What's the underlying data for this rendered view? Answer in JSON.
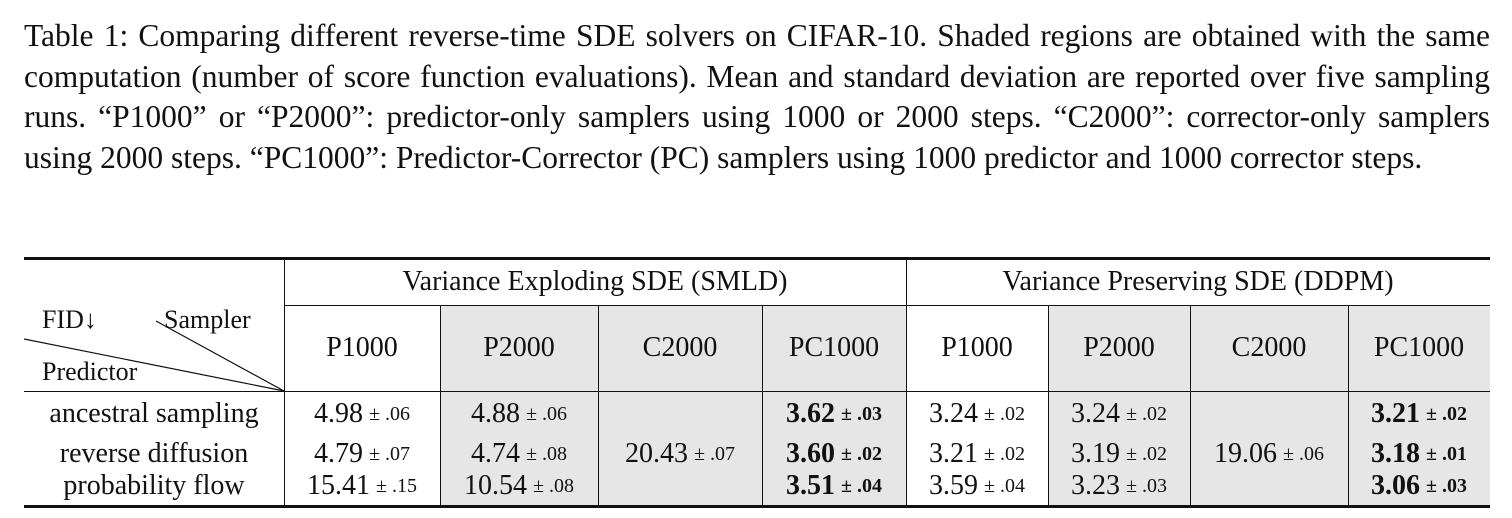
{
  "caption": "Table 1: Comparing different reverse-time SDE solvers on CIFAR-10. Shaded regions are obtained with the same computation (number of score function evaluations). Mean and standard deviation are reported over five sampling runs. “P1000” or “P2000”: predictor-only samplers using 1000 or 2000 steps. “C2000”: corrector-only samplers using 2000 steps. “PC1000”: Predictor-Corrector (PC) samplers using 1000 predictor and 1000 corrector steps.",
  "table": {
    "groups": [
      "Variance Exploding SDE (SMLD)",
      "Variance Preserving SDE (DDPM)"
    ],
    "corner": {
      "top": "FID↓",
      "top_right": "Sampler",
      "bottom": "Predictor"
    },
    "columns": [
      "P1000",
      "P2000",
      "C2000",
      "PC1000",
      "P1000",
      "P2000",
      "C2000",
      "PC1000"
    ],
    "rows": [
      {
        "predictor": "ancestral sampling",
        "cells": [
          {
            "v": "4.98",
            "sd": "± .06",
            "bold": false
          },
          {
            "v": "4.88",
            "sd": "± .06",
            "bold": false
          },
          null,
          {
            "v": "3.62",
            "sd": "± .03",
            "bold": true
          },
          {
            "v": "3.24",
            "sd": "± .02",
            "bold": false
          },
          {
            "v": "3.24",
            "sd": "± .02",
            "bold": false
          },
          null,
          {
            "v": "3.21",
            "sd": "± .02",
            "bold": true
          }
        ]
      },
      {
        "predictor": "reverse diffusion",
        "cells": [
          {
            "v": "4.79",
            "sd": "± .07",
            "bold": false
          },
          {
            "v": "4.74",
            "sd": "± .08",
            "bold": false
          },
          {
            "v": "20.43",
            "sd": "± .07",
            "bold": false
          },
          {
            "v": "3.60",
            "sd": "± .02",
            "bold": true
          },
          {
            "v": "3.21",
            "sd": "± .02",
            "bold": false
          },
          {
            "v": "3.19",
            "sd": "± .02",
            "bold": false
          },
          {
            "v": "19.06",
            "sd": "± .06",
            "bold": false
          },
          {
            "v": "3.18",
            "sd": "± .01",
            "bold": true
          }
        ]
      },
      {
        "predictor": "probability flow",
        "cells": [
          {
            "v": "15.41",
            "sd": "± .15",
            "bold": false
          },
          {
            "v": "10.54",
            "sd": "± .08",
            "bold": false
          },
          null,
          {
            "v": "3.51",
            "sd": "± .04",
            "bold": true
          },
          {
            "v": "3.59",
            "sd": "± .04",
            "bold": false
          },
          {
            "v": "3.23",
            "sd": "± .03",
            "bold": false
          },
          null,
          {
            "v": "3.06",
            "sd": "± .03",
            "bold": true
          }
        ]
      }
    ],
    "shaded_columns": [
      1,
      2,
      3,
      5,
      6,
      7
    ]
  }
}
